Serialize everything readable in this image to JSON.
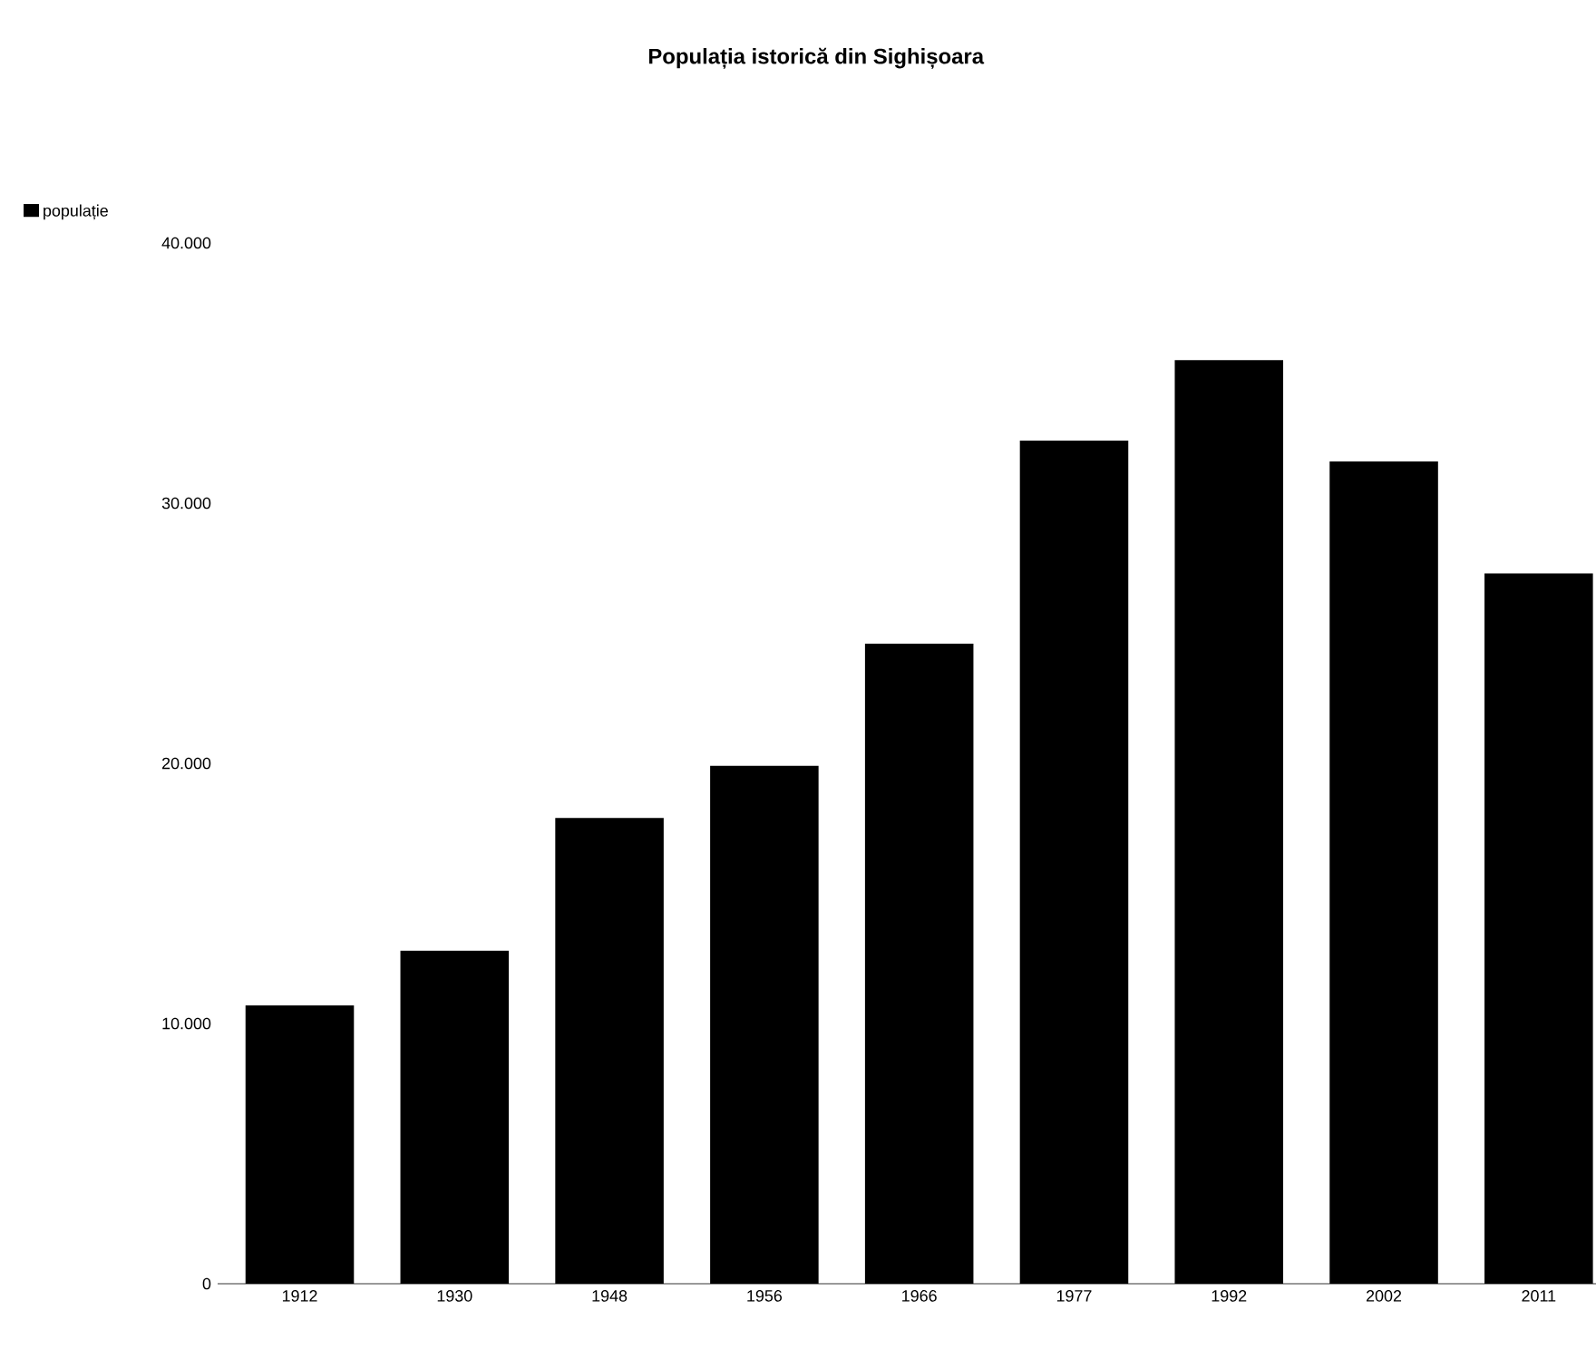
{
  "chart_data": {
    "type": "bar",
    "title": "Populația istorică din Sighișoara",
    "categories": [
      "1912",
      "1930",
      "1948",
      "1956",
      "1966",
      "1977",
      "1992",
      "2002",
      "2011"
    ],
    "series": [
      {
        "name": "populație",
        "color": "#000000",
        "values": [
          10700,
          12800,
          17900,
          19900,
          24600,
          32400,
          35500,
          31600,
          27300
        ]
      }
    ],
    "ylim": [
      0,
      40000
    ],
    "yticks": [
      {
        "value": 0,
        "label": "0"
      },
      {
        "value": 10000,
        "label": "10.000"
      },
      {
        "value": 20000,
        "label": "20.000"
      },
      {
        "value": 30000,
        "label": "30.000"
      },
      {
        "value": 40000,
        "label": "40.000"
      }
    ],
    "legend": "top left"
  }
}
